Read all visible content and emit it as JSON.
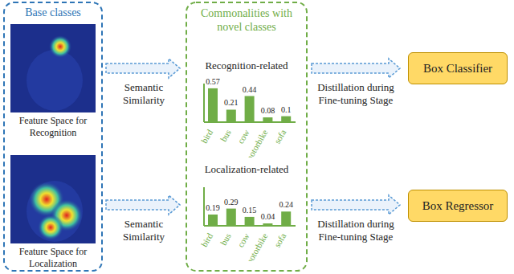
{
  "chart_data": [
    {
      "type": "bar",
      "title": "Recognition-related",
      "categories": [
        "bird",
        "bus",
        "cow",
        "motorbike",
        "sofa"
      ],
      "values": [
        0.57,
        0.21,
        0.44,
        0.08,
        0.1
      ],
      "color": "#70ad47",
      "ylim": [
        0,
        0.65
      ],
      "data_labels": true,
      "tick_labels": "x"
    },
    {
      "type": "bar",
      "title": "Localization-related",
      "categories": [
        "bird",
        "bus",
        "cow",
        "motorbike",
        "sofa"
      ],
      "values": [
        0.19,
        0.29,
        0.15,
        0.04,
        0.24
      ],
      "color": "#70ad47",
      "ylim": [
        0,
        0.65
      ],
      "data_labels": true,
      "tick_labels": "x"
    }
  ],
  "diagram": {
    "base_panel": {
      "title": "Base classes",
      "items": [
        {
          "label": "Feature Space for Recognition"
        },
        {
          "label": "Feature Space for Localization"
        }
      ]
    },
    "middle_panel": {
      "title": "Commonalities with novel classes"
    },
    "arrows": {
      "similarity": "Semantic Similarity",
      "distillation": "Distillation during Fine-tuning Stage"
    },
    "outputs": [
      "Box Classifier",
      "Box Regressor"
    ]
  }
}
